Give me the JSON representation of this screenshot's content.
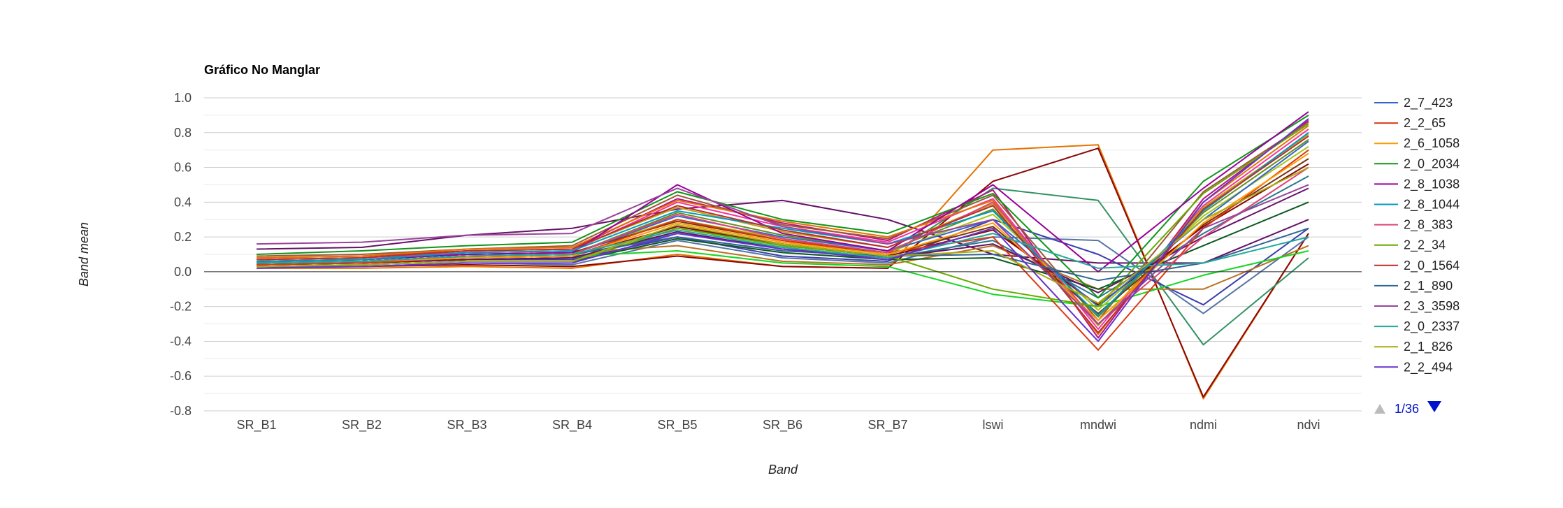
{
  "chart_data": {
    "type": "line",
    "title": "Gráfico No Manglar",
    "xlabel": "Band",
    "ylabel": "Band mean",
    "categories": [
      "SR_B1",
      "SR_B2",
      "SR_B3",
      "SR_B4",
      "SR_B5",
      "SR_B6",
      "SR_B7",
      "lswi",
      "mndwi",
      "ndmi",
      "ndvi"
    ],
    "ylim": [
      -0.8,
      1.0
    ],
    "yticks": [
      1.0,
      0.8,
      0.6,
      0.4,
      0.2,
      0.0,
      -0.2,
      -0.4,
      -0.6,
      -0.8
    ],
    "ytick_labels": [
      "1.0",
      "0.8",
      "0.6",
      "0.4",
      "0.2",
      "0.0",
      "-0.2",
      "-0.4",
      "-0.6",
      "-0.8"
    ],
    "grid": true,
    "legend_position": "right",
    "legend_pager": {
      "page": "1/36",
      "up_icon": "triangle-up-icon",
      "down_icon": "triangle-down-icon"
    },
    "series": [
      {
        "name": "2_7_423",
        "color": "#3366cc",
        "values": [
          0.05,
          0.06,
          0.09,
          0.1,
          0.32,
          0.2,
          0.12,
          0.3,
          -0.2,
          0.3,
          0.75
        ]
      },
      {
        "name": "2_2_65",
        "color": "#dc3912",
        "values": [
          0.04,
          0.05,
          0.08,
          0.09,
          0.3,
          0.18,
          0.11,
          0.2,
          -0.45,
          0.25,
          0.7
        ]
      },
      {
        "name": "2_6_1058",
        "color": "#ff9900",
        "values": [
          0.05,
          0.06,
          0.08,
          0.09,
          0.28,
          0.17,
          0.1,
          0.28,
          -0.28,
          0.28,
          0.68
        ]
      },
      {
        "name": "2_0_2034",
        "color": "#109618",
        "values": [
          0.1,
          0.12,
          0.15,
          0.17,
          0.46,
          0.3,
          0.22,
          0.45,
          -0.15,
          0.52,
          0.9
        ]
      },
      {
        "name": "2_8_1038",
        "color": "#990099",
        "values": [
          0.06,
          0.07,
          0.1,
          0.11,
          0.5,
          0.22,
          0.12,
          0.5,
          0.0,
          0.48,
          0.92
        ]
      },
      {
        "name": "2_8_1044",
        "color": "#0099c6",
        "values": [
          0.06,
          0.07,
          0.11,
          0.12,
          0.35,
          0.25,
          0.16,
          0.35,
          -0.25,
          0.35,
          0.8
        ]
      },
      {
        "name": "2_8_383",
        "color": "#dd4477",
        "values": [
          0.05,
          0.06,
          0.09,
          0.1,
          0.33,
          0.19,
          0.11,
          0.4,
          -0.3,
          0.2,
          0.6
        ]
      },
      {
        "name": "2_2_34",
        "color": "#66aa00",
        "values": [
          0.03,
          0.04,
          0.06,
          0.06,
          0.25,
          0.15,
          0.09,
          -0.1,
          -0.2,
          0.45,
          0.85
        ]
      },
      {
        "name": "2_0_1564",
        "color": "#b82e2e",
        "values": [
          0.07,
          0.08,
          0.12,
          0.13,
          0.38,
          0.24,
          0.14,
          0.38,
          -0.35,
          0.36,
          0.78
        ]
      },
      {
        "name": "2_1_890",
        "color": "#316395",
        "values": [
          0.05,
          0.06,
          0.09,
          0.1,
          0.2,
          0.12,
          0.09,
          0.1,
          -0.05,
          0.05,
          0.25
        ]
      },
      {
        "name": "2_3_3598",
        "color": "#994499",
        "values": [
          0.16,
          0.17,
          0.21,
          0.22,
          0.48,
          0.26,
          0.16,
          0.3,
          -0.3,
          0.25,
          0.5
        ]
      },
      {
        "name": "2_0_2337",
        "color": "#22aa99",
        "values": [
          0.05,
          0.06,
          0.09,
          0.1,
          0.24,
          0.14,
          0.08,
          0.22,
          0.02,
          0.05,
          0.2
        ]
      },
      {
        "name": "2_1_826",
        "color": "#aaaa11",
        "values": [
          0.03,
          0.04,
          0.06,
          0.06,
          0.27,
          0.16,
          0.09,
          0.12,
          -0.18,
          0.3,
          0.6
        ]
      },
      {
        "name": "2_2_494",
        "color": "#6633cc",
        "values": [
          0.02,
          0.03,
          0.05,
          0.05,
          0.22,
          0.13,
          0.07,
          0.25,
          -0.4,
          0.4,
          0.88
        ]
      }
    ],
    "extra_series_colors": [
      "#e67300",
      "#8b0707",
      "#651067",
      "#329262",
      "#5574a6",
      "#3b3eac",
      "#b77322",
      "#16d620",
      "#b91383",
      "#f4359e",
      "#9c5935",
      "#a9c413",
      "#2a778d",
      "#668d1c",
      "#bea413",
      "#0c5922",
      "#743411"
    ],
    "extra_series": [
      [
        0.02,
        0.02,
        0.03,
        0.02,
        0.1,
        0.03,
        0.02,
        0.7,
        0.73,
        -0.73,
        0.22
      ],
      [
        0.03,
        0.03,
        0.04,
        0.03,
        0.09,
        0.03,
        0.02,
        0.52,
        0.71,
        -0.72,
        0.22
      ],
      [
        0.13,
        0.14,
        0.21,
        0.25,
        0.36,
        0.41,
        0.3,
        0.1,
        0.05,
        0.05,
        0.3
      ],
      [
        0.04,
        0.05,
        0.07,
        0.07,
        0.26,
        0.15,
        0.09,
        0.48,
        0.41,
        -0.42,
        0.08
      ],
      [
        0.03,
        0.03,
        0.05,
        0.04,
        0.18,
        0.08,
        0.05,
        0.2,
        0.18,
        -0.24,
        0.2
      ],
      [
        0.04,
        0.05,
        0.07,
        0.07,
        0.2,
        0.09,
        0.06,
        0.3,
        0.1,
        -0.19,
        0.25
      ],
      [
        0.06,
        0.07,
        0.1,
        0.11,
        0.15,
        0.06,
        0.04,
        0.15,
        -0.1,
        -0.1,
        0.15
      ],
      [
        0.05,
        0.06,
        0.08,
        0.09,
        0.12,
        0.05,
        0.03,
        -0.13,
        -0.2,
        -0.02,
        0.12
      ],
      [
        0.08,
        0.09,
        0.12,
        0.13,
        0.42,
        0.28,
        0.18,
        0.47,
        -0.38,
        0.42,
        0.87
      ],
      [
        0.07,
        0.08,
        0.11,
        0.12,
        0.4,
        0.26,
        0.17,
        0.42,
        -0.33,
        0.38,
        0.82
      ],
      [
        0.09,
        0.1,
        0.13,
        0.15,
        0.44,
        0.27,
        0.19,
        0.44,
        -0.28,
        0.46,
        0.86
      ],
      [
        0.06,
        0.07,
        0.1,
        0.11,
        0.3,
        0.19,
        0.11,
        0.33,
        -0.22,
        0.32,
        0.72
      ],
      [
        0.04,
        0.05,
        0.07,
        0.08,
        0.22,
        0.14,
        0.08,
        0.18,
        -0.15,
        0.22,
        0.55
      ],
      [
        0.05,
        0.06,
        0.09,
        0.1,
        0.34,
        0.21,
        0.12,
        0.36,
        -0.26,
        0.34,
        0.76
      ],
      [
        0.07,
        0.08,
        0.12,
        0.13,
        0.37,
        0.23,
        0.14,
        0.39,
        -0.31,
        0.37,
        0.79
      ],
      [
        0.03,
        0.04,
        0.06,
        0.06,
        0.19,
        0.11,
        0.07,
        0.08,
        -0.1,
        0.15,
        0.4
      ],
      [
        0.06,
        0.07,
        0.1,
        0.11,
        0.29,
        0.18,
        0.1,
        0.26,
        -0.24,
        0.27,
        0.65
      ],
      [
        0.08,
        0.09,
        0.13,
        0.14,
        0.41,
        0.29,
        0.2,
        0.41,
        -0.36,
        0.4,
        0.84
      ],
      [
        0.05,
        0.06,
        0.08,
        0.09,
        0.26,
        0.16,
        0.09,
        0.24,
        -0.19,
        0.26,
        0.62
      ],
      [
        0.04,
        0.05,
        0.07,
        0.08,
        0.23,
        0.13,
        0.08,
        0.16,
        -0.12,
        0.2,
        0.48
      ]
    ]
  }
}
